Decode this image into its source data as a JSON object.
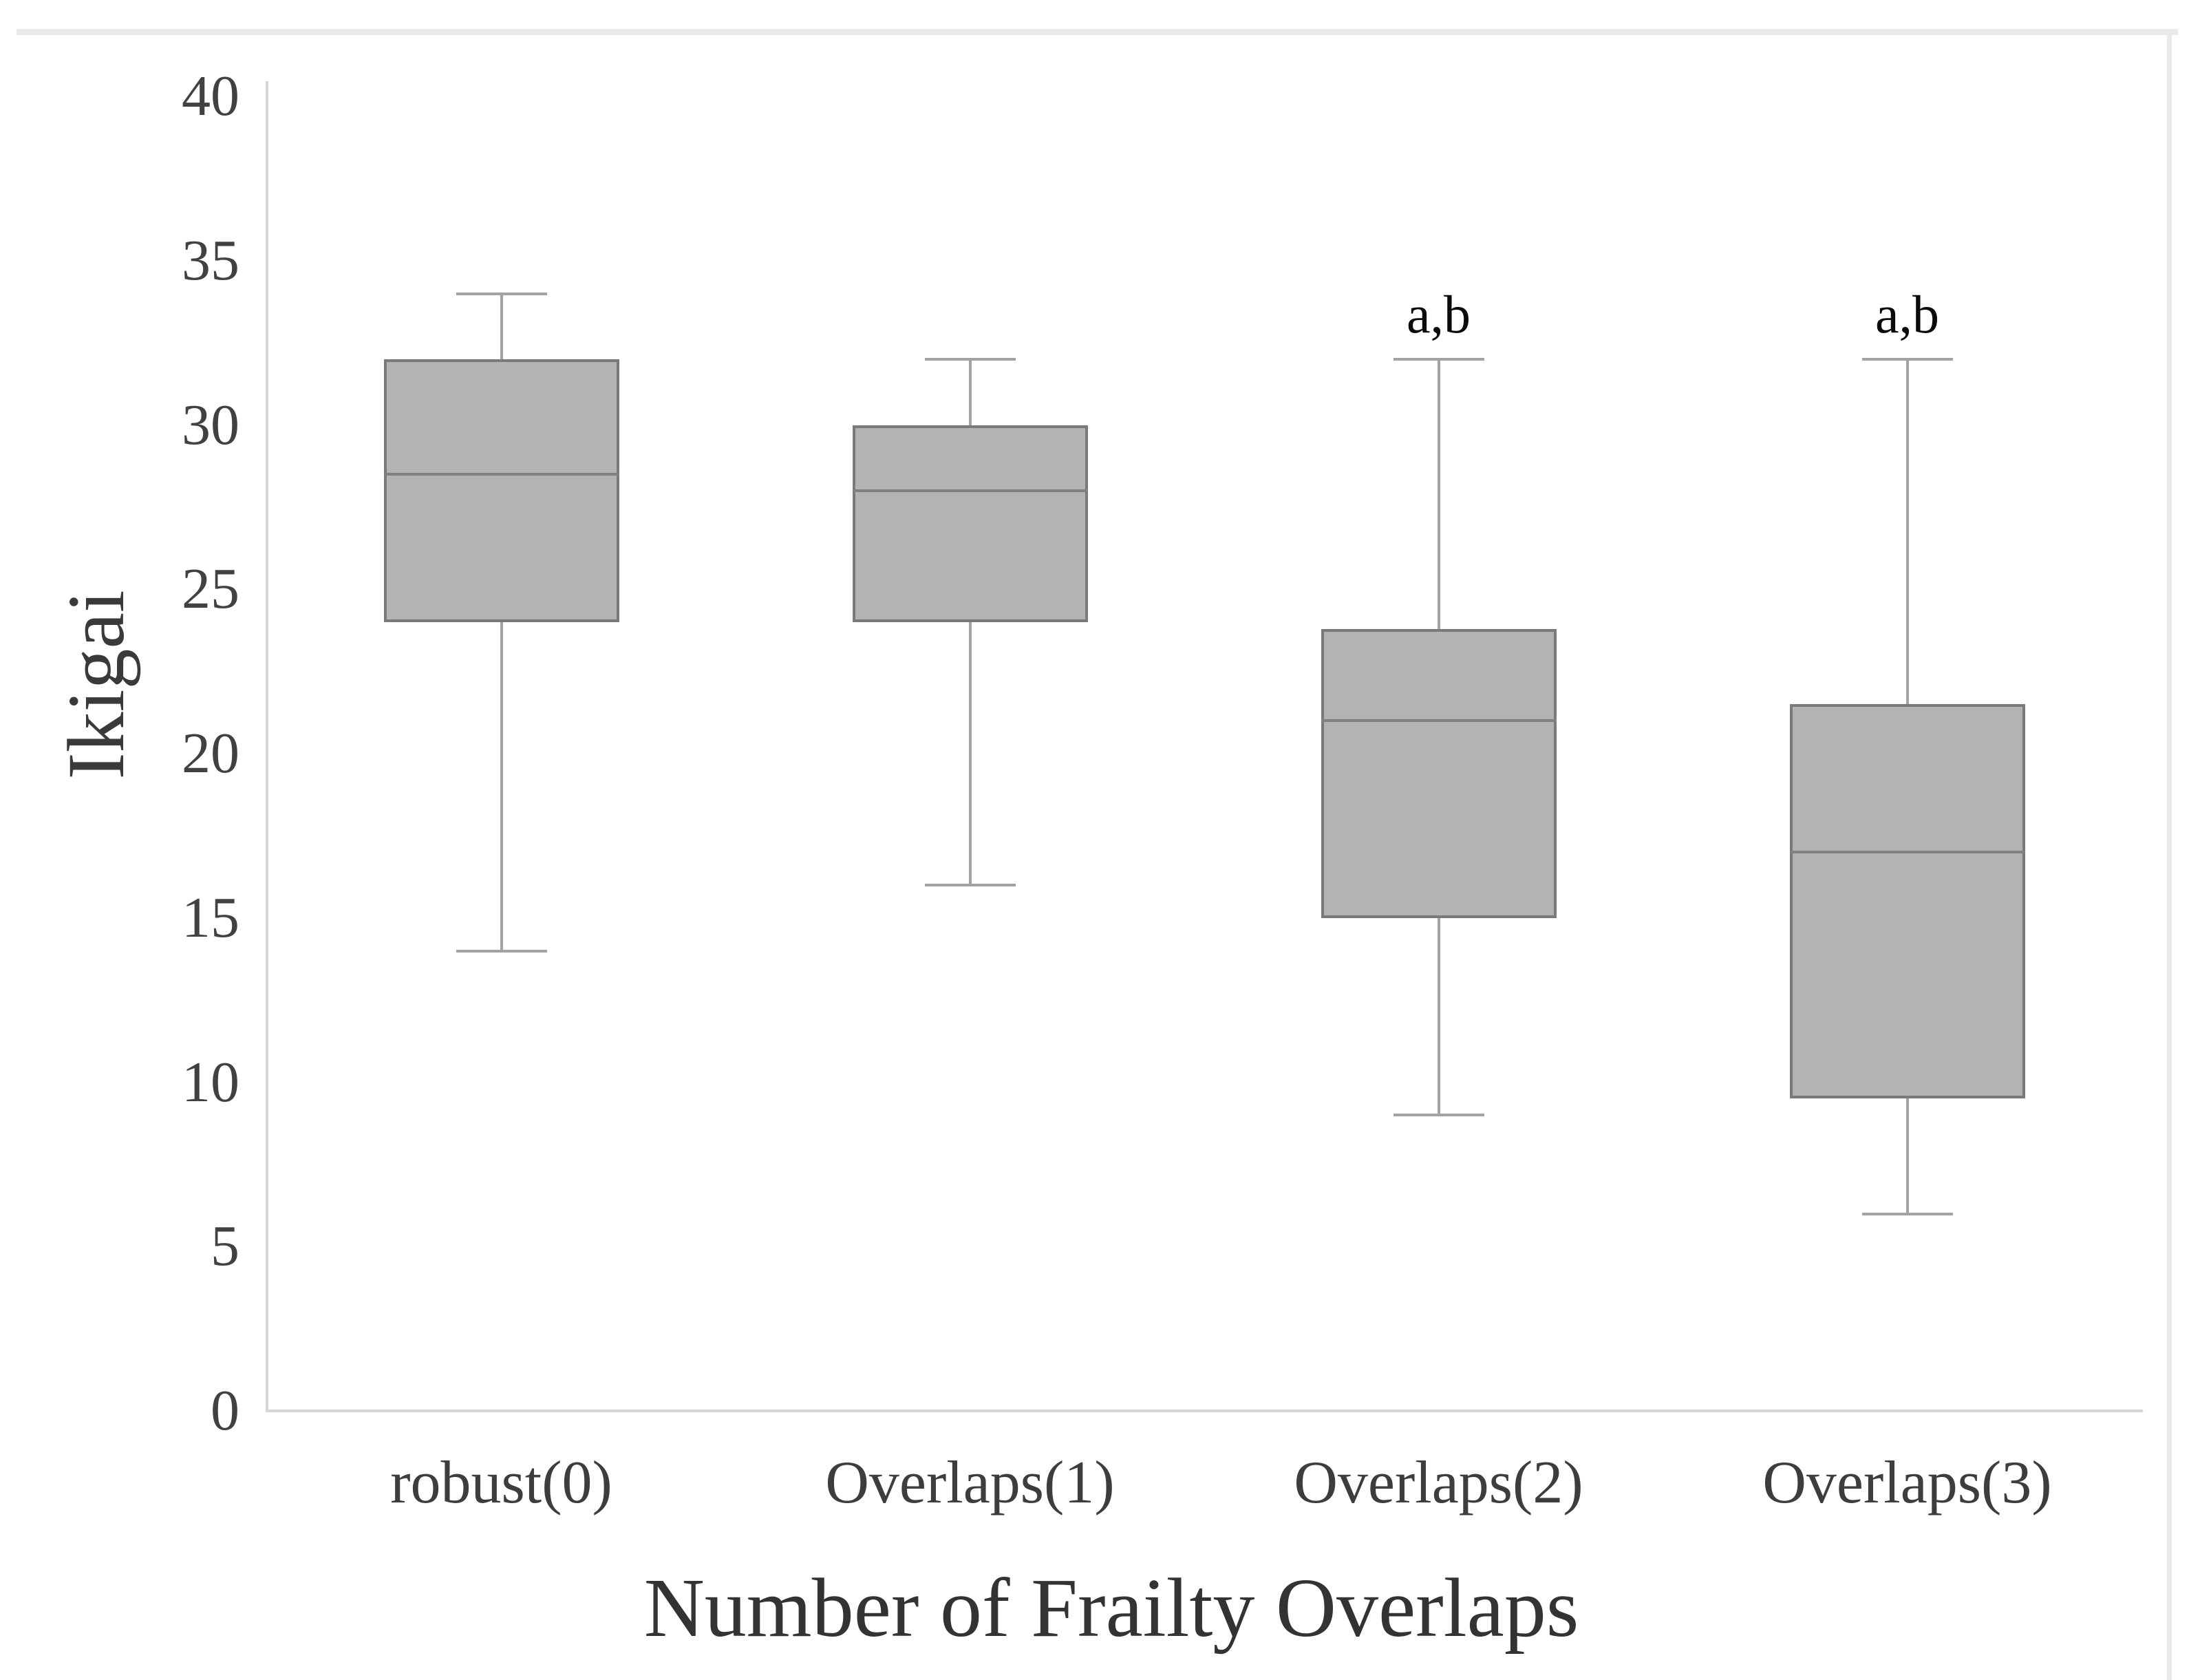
{
  "figure_type": "boxplot-figure",
  "page_artifacts": {
    "top_border_visible": true,
    "right_border_visible": true
  },
  "chart_data": {
    "type": "boxplot",
    "title": "",
    "xlabel": "Number of Frailty Overlaps",
    "ylabel": "Ikigai",
    "ylim": [
      0,
      40
    ],
    "yticks": [
      40,
      35,
      30,
      25,
      20,
      15,
      10,
      5,
      0
    ],
    "grid": false,
    "legend": null,
    "categories": [
      "robust(0)",
      "Overlaps(1)",
      "Overlaps(2)",
      "Overlaps(3)"
    ],
    "series": [
      {
        "category": "robust(0)",
        "min": 14,
        "q1": 24,
        "median": 28.5,
        "q3": 32,
        "max": 34,
        "annotation": ""
      },
      {
        "category": "Overlaps(1)",
        "min": 16,
        "q1": 24,
        "median": 28,
        "q3": 30,
        "max": 32,
        "annotation": ""
      },
      {
        "category": "Overlaps(2)",
        "min": 9,
        "q1": 15,
        "median": 21,
        "q3": 23.8,
        "max": 32,
        "annotation": "a,b"
      },
      {
        "category": "Overlaps(3)",
        "min": 6,
        "q1": 9.5,
        "median": 17,
        "q3": 21.5,
        "max": 32,
        "annotation": "a,b"
      }
    ],
    "colors": {
      "box_fill": "#b3b3b3",
      "box_border": "#7a7a7a",
      "median_line": "#808080",
      "whisker": "#a3a3a3",
      "axis_line": "#d5d5d5",
      "tick_text": "#414141",
      "axis_title_text": "#3a3a3a",
      "annotation_text": "#0a0a0a",
      "page_edge": "#e9e9e9"
    }
  }
}
